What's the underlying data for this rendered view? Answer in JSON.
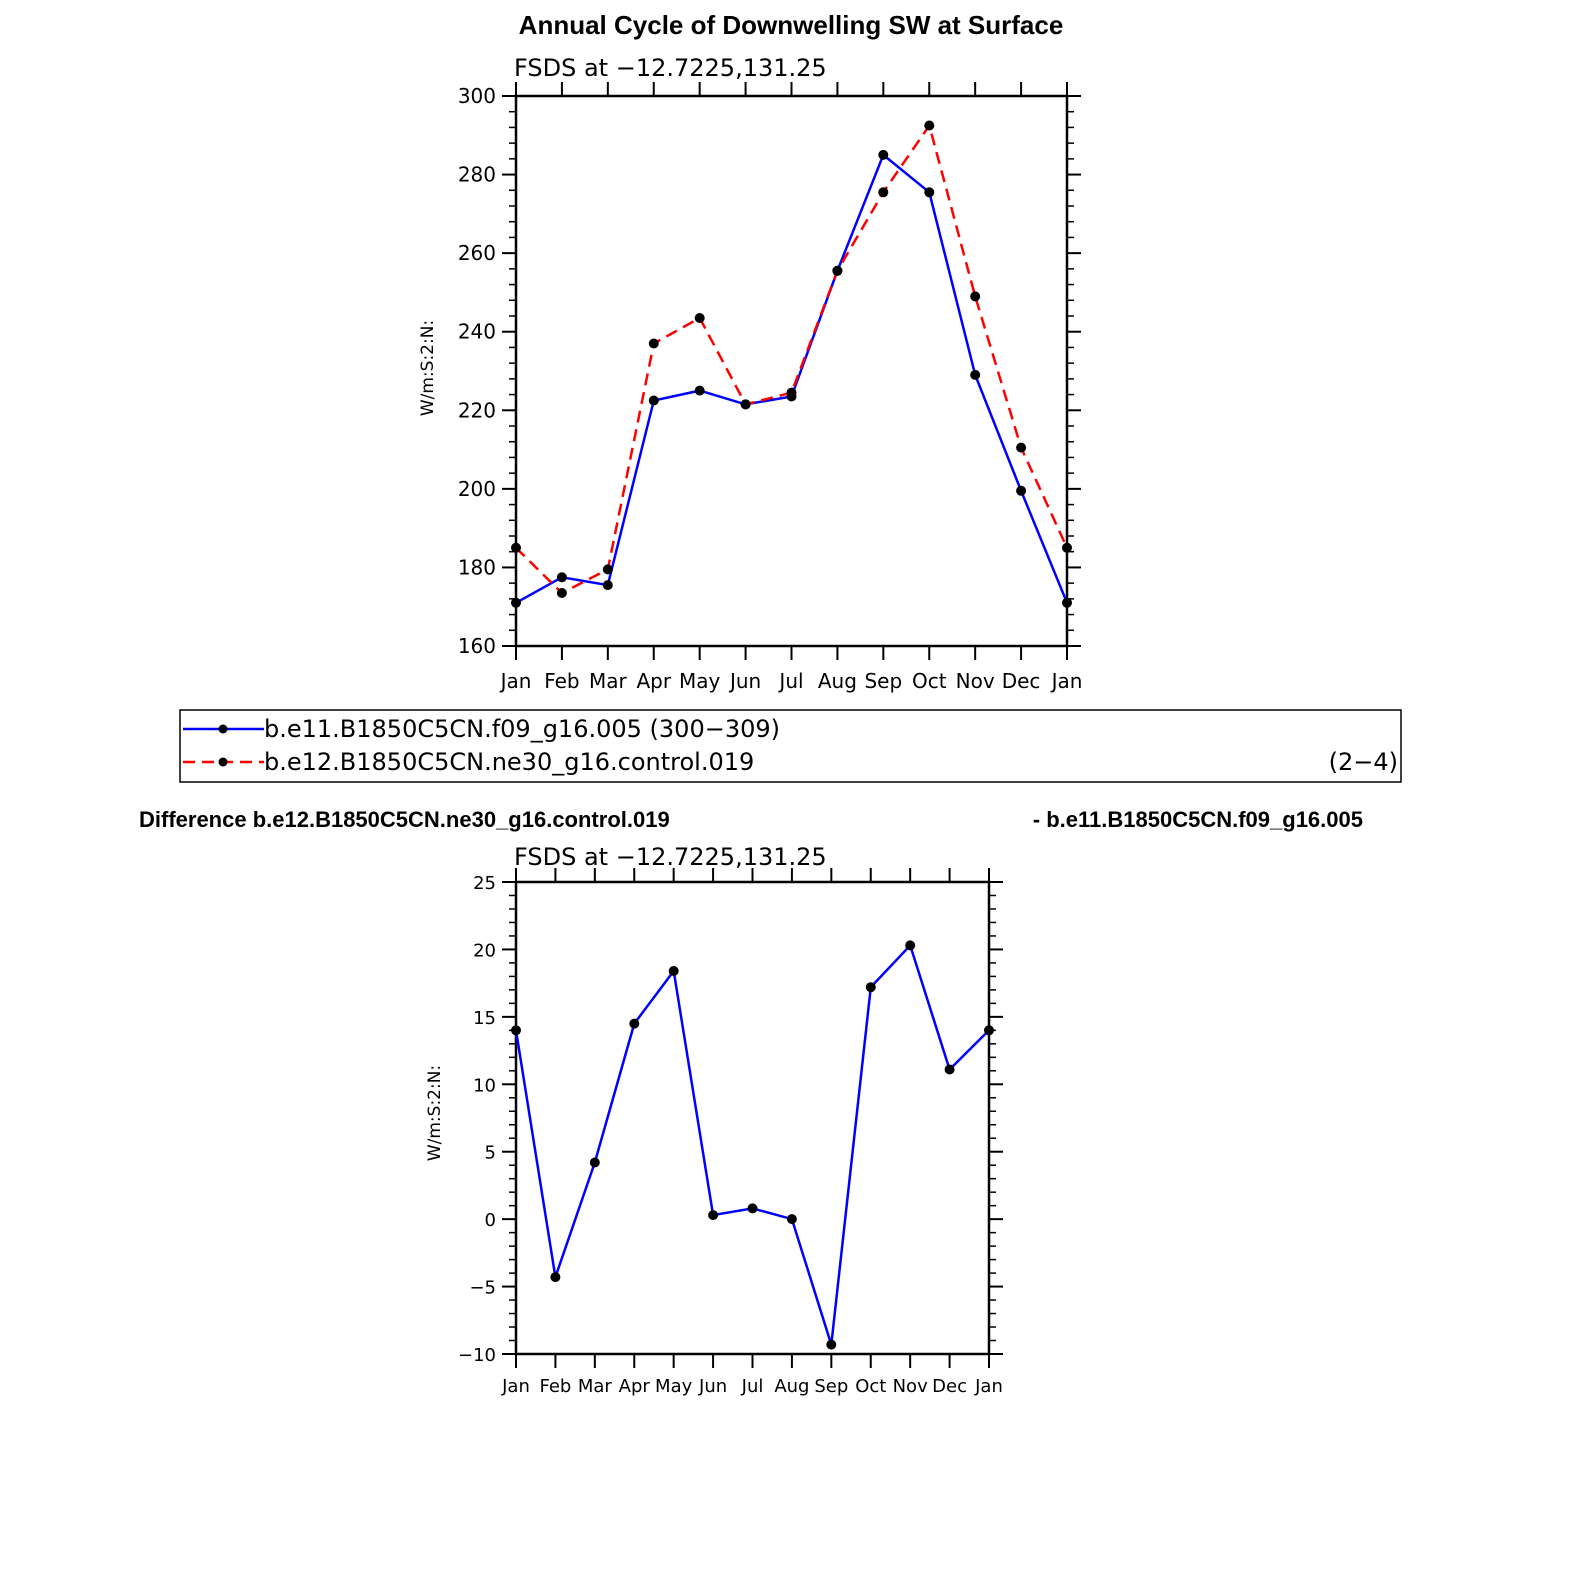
{
  "chart_data": [
    {
      "type": "line",
      "title": "Annual Cycle of Downwelling SW at Surface",
      "subtitle": "FSDS at −12.7225,131.25",
      "xlabel": "",
      "ylabel": "W/m:S:2:N:",
      "categories": [
        "Jan",
        "Feb",
        "Mar",
        "Apr",
        "May",
        "Jun",
        "Jul",
        "Aug",
        "Sep",
        "Oct",
        "Nov",
        "Dec",
        "Jan"
      ],
      "ylim": [
        160,
        300
      ],
      "yticks": [
        160,
        180,
        200,
        220,
        240,
        260,
        280,
        300
      ],
      "ytick_labels": [
        "160",
        "180",
        "200",
        "220",
        "240",
        "260",
        "280",
        "300"
      ],
      "grid": false,
      "legend_position": "bottom",
      "series": [
        {
          "name": "b.e11.B1850C5CN.f09_g16.005 (300−309)",
          "color": "#0000ff",
          "dashed": false,
          "values": [
            171,
            177.5,
            175.5,
            222.5,
            225,
            221.5,
            223.5,
            255.5,
            285,
            275.5,
            229,
            199.5,
            171
          ]
        },
        {
          "name": "b.e12.B1850C5CN.ne30_g16.control.019",
          "color": "#ff0000",
          "dashed": true,
          "values": [
            185,
            173.5,
            179.5,
            237,
            243.5,
            221.5,
            224.5,
            255.5,
            275.5,
            292.5,
            249,
            210.5,
            185
          ]
        }
      ],
      "legend_extra": "(2−4)"
    },
    {
      "type": "line",
      "title": "Difference b.e12.B1850C5CN.ne30_g16.control.019",
      "title_right": "- b.e11.B1850C5CN.f09_g16.005",
      "subtitle": "FSDS at −12.7225,131.25",
      "xlabel": "",
      "ylabel": "W/m:S:2:N:",
      "categories": [
        "Jan",
        "Feb",
        "Mar",
        "Apr",
        "May",
        "Jun",
        "Jul",
        "Aug",
        "Sep",
        "Oct",
        "Nov",
        "Dec",
        "Jan"
      ],
      "ylim": [
        -10,
        25
      ],
      "yticks": [
        -10,
        -5,
        0,
        5,
        10,
        15,
        20,
        25
      ],
      "ytick_labels": [
        "−10",
        "−5",
        "0",
        "5",
        "10",
        "15",
        "20",
        "25"
      ],
      "grid": false,
      "series": [
        {
          "color": "#0000ff",
          "dashed": false,
          "values": [
            14,
            -4.3,
            4.2,
            14.5,
            18.4,
            0.3,
            0.8,
            0,
            -9.3,
            17.2,
            20.3,
            11.1,
            14
          ]
        }
      ]
    }
  ]
}
